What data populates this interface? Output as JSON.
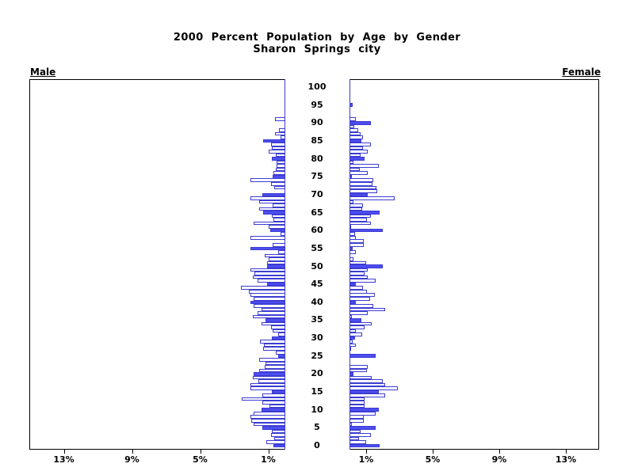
{
  "title": {
    "line1": "2000 Percent Population by Age by Gender",
    "line2": "Sharon Springs city"
  },
  "panel_labels": {
    "left": "Male",
    "right": "Female"
  },
  "colors": {
    "bar_fill": "#4d4df0",
    "bar_outline": "#3c3cd2",
    "axis": "#000000"
  },
  "axis": {
    "x_tick_percents": [
      1,
      5,
      9,
      13
    ],
    "x_tick_labels_left": [
      "13%",
      "9%",
      "5%",
      "1%"
    ],
    "x_tick_labels_right": [
      "1%",
      "5%",
      "9%",
      "13%"
    ],
    "x_max_percent": 15,
    "age_tick_labels": [
      "0",
      "5",
      "10",
      "15",
      "20",
      "25",
      "30",
      "35",
      "40",
      "45",
      "50",
      "55",
      "60",
      "65",
      "70",
      "75",
      "80",
      "85",
      "90",
      "95",
      "100"
    ]
  },
  "chart_data": {
    "type": "bar",
    "subtype": "population-pyramid",
    "title": "2000 Percent Population by Age by Gender",
    "subtitle": "Sharon Springs city",
    "unit": "percent of population",
    "ages": {
      "min": 0,
      "max": 100,
      "step": 1
    },
    "xlim_left_male": [
      15,
      0
    ],
    "xlim_right_female": [
      0,
      15
    ],
    "highlight_rule": "ages divisible by 5 are solid blue, others white with blue outline",
    "series": [
      {
        "name": "Male",
        "values": [
          0.7,
          1.1,
          0.65,
          0.85,
          0.8,
          1.35,
          1.85,
          2.0,
          2.05,
          1.85,
          1.4,
          0.95,
          1.35,
          2.55,
          1.35,
          0.8,
          2.05,
          2.05,
          1.6,
          1.9,
          1.85,
          1.55,
          1.2,
          1.15,
          1.55,
          0.4,
          0.55,
          1.3,
          1.25,
          1.5,
          0.8,
          0.4,
          0.75,
          0.85,
          1.4,
          1.15,
          1.9,
          1.65,
          1.4,
          1.85,
          2.05,
          1.85,
          2.05,
          2.15,
          2.6,
          1.05,
          1.65,
          1.9,
          1.8,
          2.05,
          1.05,
          1.05,
          1.0,
          1.2,
          0.4,
          2.05,
          0.75,
          0,
          2.05,
          0.3,
          0.9,
          1.0,
          1.85,
          0.7,
          0.8,
          1.3,
          1.55,
          0.75,
          1.55,
          2.05,
          1.35,
          0,
          0.65,
          0.85,
          2.05,
          0.75,
          0.7,
          0.55,
          0.5,
          0.5,
          0.8,
          0.55,
          1.0,
          0.8,
          0.85,
          1.3,
          0.3,
          0.6,
          0.35,
          0,
          0,
          0.6,
          0,
          0,
          0,
          0,
          0,
          0,
          0,
          0,
          0
        ]
      },
      {
        "name": "Female",
        "values": [
          1.8,
          1.0,
          0.55,
          1.3,
          0.65,
          1.55,
          0.15,
          0.85,
          0.85,
          1.55,
          1.75,
          0.9,
          0.9,
          0.9,
          2.15,
          1.75,
          2.9,
          2.15,
          2.0,
          1.35,
          0.25,
          1.05,
          1.1,
          0,
          0,
          1.55,
          0,
          0.1,
          0.4,
          0.2,
          0.35,
          0.75,
          0.4,
          0.9,
          1.35,
          0.7,
          0.15,
          1.1,
          2.15,
          1.45,
          0.4,
          1.25,
          1.5,
          1.05,
          0.8,
          0.4,
          1.55,
          1.1,
          0.9,
          1.1,
          2.0,
          1.0,
          0.25,
          0,
          0.4,
          0.2,
          0.85,
          0.85,
          0.4,
          0.35,
          2.0,
          0.1,
          1.3,
          1.05,
          1.3,
          1.8,
          0.75,
          0.8,
          0.25,
          2.7,
          1.1,
          1.65,
          1.6,
          1.4,
          1.45,
          0.15,
          1.1,
          0.6,
          1.75,
          0.25,
          0.9,
          0.65,
          1.1,
          0.8,
          1.3,
          0.7,
          0.8,
          0.65,
          0.5,
          0.3,
          1.3,
          0.4,
          0,
          0,
          0,
          0.2,
          0,
          0,
          0,
          0,
          0
        ]
      }
    ]
  }
}
